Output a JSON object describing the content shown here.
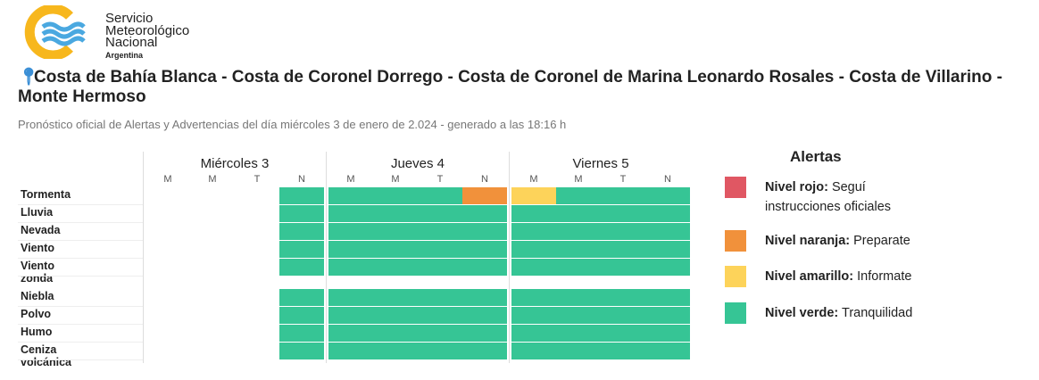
{
  "logo": {
    "line1": "Servicio",
    "line2": "Meteorológico",
    "line3": "Nacional",
    "line4": "Argentina"
  },
  "title": "Costa de Bahía Blanca - Costa de Coronel Dorrego - Costa de Coronel de Marina Leonardo Rosales - Costa de Villarino - Monte Hermoso",
  "subtitle": "Pronóstico oficial de Alertas y Advertencias del día miércoles 3 de enero de 2.024 - generado a las 18:16 h",
  "colors": {
    "rojo": "#e05763",
    "naranja": "#f1913b",
    "amarillo": "#fdd35a",
    "verde": "#36c595"
  },
  "days": [
    {
      "name": "Miércoles 3",
      "periods": [
        "M",
        "M",
        "T",
        "N"
      ]
    },
    {
      "name": "Jueves 4",
      "periods": [
        "M",
        "M",
        "T",
        "N"
      ]
    },
    {
      "name": "Viernes 5",
      "periods": [
        "M",
        "M",
        "T",
        "N"
      ]
    }
  ],
  "rows": [
    {
      "label": "Tormenta",
      "levels": [
        "",
        "",
        "",
        "verde",
        "verde",
        "verde",
        "verde",
        "naranja",
        "amarillo",
        "verde",
        "verde",
        "verde"
      ]
    },
    {
      "label": "Lluvia",
      "levels": [
        "",
        "",
        "",
        "verde",
        "verde",
        "verde",
        "verde",
        "verde",
        "verde",
        "verde",
        "verde",
        "verde"
      ]
    },
    {
      "label": "Nevada",
      "levels": [
        "",
        "",
        "",
        "verde",
        "verde",
        "verde",
        "verde",
        "verde",
        "verde",
        "verde",
        "verde",
        "verde"
      ]
    },
    {
      "label": "Viento",
      "levels": [
        "",
        "",
        "",
        "verde",
        "verde",
        "verde",
        "verde",
        "verde",
        "verde",
        "verde",
        "verde",
        "verde"
      ]
    },
    {
      "label": "Viento zonda",
      "levels": [
        "",
        "",
        "",
        "verde",
        "verde",
        "verde",
        "verde",
        "verde",
        "verde",
        "verde",
        "verde",
        "verde"
      ]
    },
    {
      "label": "Niebla",
      "levels": [
        "",
        "",
        "",
        "verde",
        "verde",
        "verde",
        "verde",
        "verde",
        "verde",
        "verde",
        "verde",
        "verde"
      ]
    },
    {
      "label": "Polvo",
      "levels": [
        "",
        "",
        "",
        "verde",
        "verde",
        "verde",
        "verde",
        "verde",
        "verde",
        "verde",
        "verde",
        "verde"
      ]
    },
    {
      "label": "Humo",
      "levels": [
        "",
        "",
        "",
        "verde",
        "verde",
        "verde",
        "verde",
        "verde",
        "verde",
        "verde",
        "verde",
        "verde"
      ]
    },
    {
      "label": "Ceniza volcánica",
      "levels": [
        "",
        "",
        "",
        "verde",
        "verde",
        "verde",
        "verde",
        "verde",
        "verde",
        "verde",
        "verde",
        "verde"
      ]
    }
  ],
  "legend": {
    "title": "Alertas",
    "items": [
      {
        "level": "rojo",
        "name": "Nivel rojo:",
        "desc": "Seguí instrucciones oficiales"
      },
      {
        "level": "naranja",
        "name": "Nivel naranja:",
        "desc": "Preparate"
      },
      {
        "level": "amarillo",
        "name": "Nivel amarillo:",
        "desc": "Informate"
      },
      {
        "level": "verde",
        "name": "Nivel verde:",
        "desc": "Tranquilidad"
      }
    ]
  }
}
